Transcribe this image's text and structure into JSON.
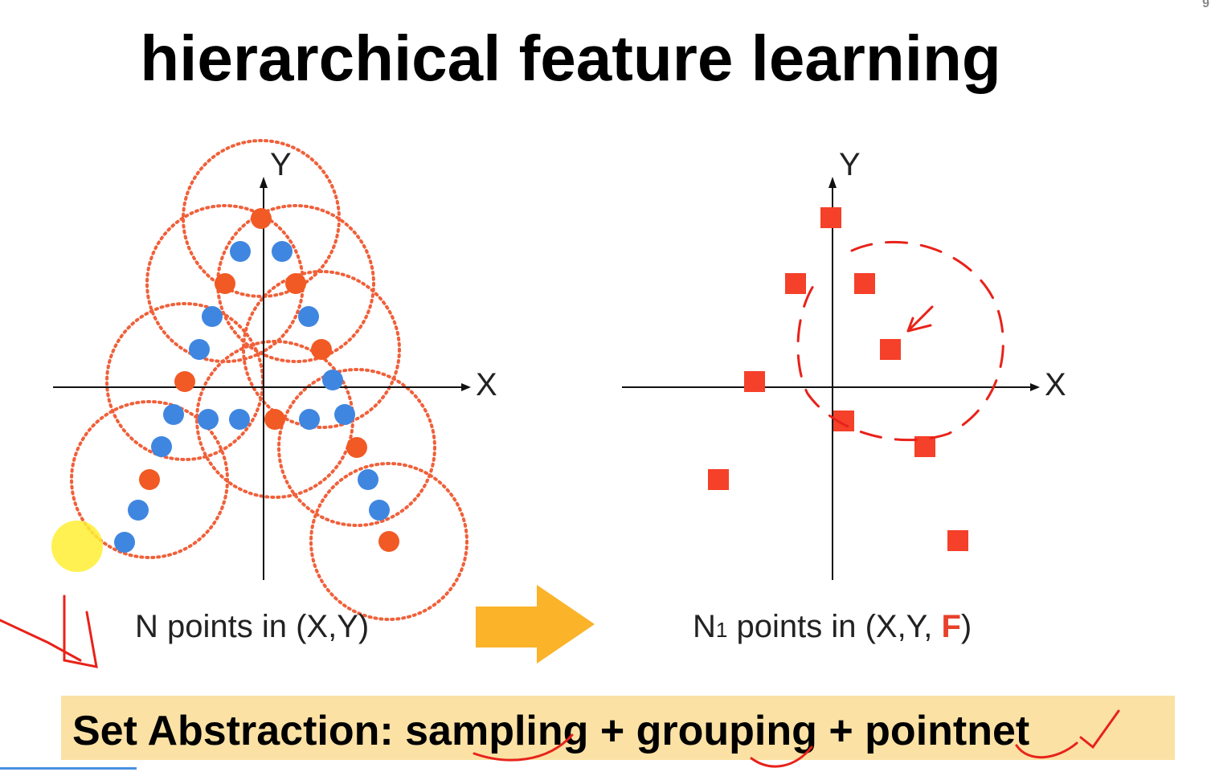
{
  "slide": {
    "title": "hierarchical feature learning",
    "corner_number": "9"
  },
  "left_panel": {
    "x_axis_label": "X",
    "y_axis_label": "Y",
    "caption": "N points in (X,Y)",
    "colors": {
      "sampled_point": "#f15a24",
      "other_point": "#3f86e0",
      "ball": "#f0603a"
    }
  },
  "right_panel": {
    "x_axis_label": "X",
    "y_axis_label": "Y",
    "caption_prefix": "N",
    "caption_sub": "1",
    "caption_middle": " points in (X,Y, ",
    "caption_F": "F",
    "caption_suffix": ")",
    "colors": {
      "point": "#f5402a"
    }
  },
  "arrow": {
    "color": "#fbb32a"
  },
  "banner": {
    "text": "Set Abstraction: sampling + grouping + pointnet",
    "color": "#fbe1a4"
  },
  "annotations": {
    "ink_color": "#e8221a",
    "highlight_color": "#ffee33"
  }
}
